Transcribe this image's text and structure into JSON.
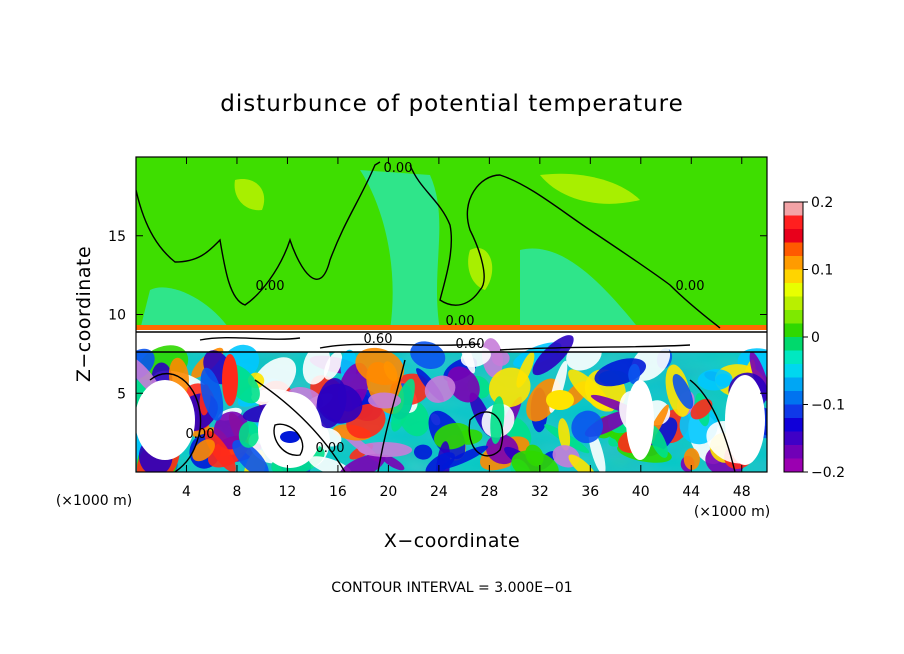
{
  "chart_data": {
    "type": "heatmap",
    "title": "disturbunce of potential temperature",
    "xlabel": "X−coordinate",
    "ylabel": "Z−coordinate",
    "x_unit": "(×1000 m)",
    "y_unit": "(×1000 m)",
    "xlim": [
      0,
      50
    ],
    "ylim": [
      0,
      20
    ],
    "x_ticks": [
      4,
      8,
      12,
      16,
      20,
      24,
      28,
      32,
      36,
      40,
      44,
      48
    ],
    "y_ticks": [
      5,
      10,
      15
    ],
    "colorbar": {
      "min": -0.2,
      "max": 0.2,
      "tick_values": [
        0.2,
        0.1,
        0,
        -0.1,
        -0.2
      ],
      "tick_labels": [
        "0.2",
        "0.1",
        "0",
        "−0.1",
        "−0.2"
      ],
      "colors_top_to_bottom": [
        "#f3a3a6",
        "#ff1f1f",
        "#e8001b",
        "#ff5a00",
        "#ff9b00",
        "#ffd400",
        "#e8ff00",
        "#b9ef00",
        "#7ee900",
        "#2fd800",
        "#00d96c",
        "#00e8c0",
        "#00d7ef",
        "#00a6f4",
        "#0073f0",
        "#0f39e8",
        "#1000d9",
        "#3f00c6",
        "#7000b7",
        "#9b00b1"
      ]
    },
    "contour_labels": [
      "0.00",
      "0.00",
      "0.00",
      "0.00",
      "0.60",
      "0.60",
      "0.00",
      "0.00"
    ],
    "footer": "CONTOUR INTERVAL =  3.000E−01"
  }
}
